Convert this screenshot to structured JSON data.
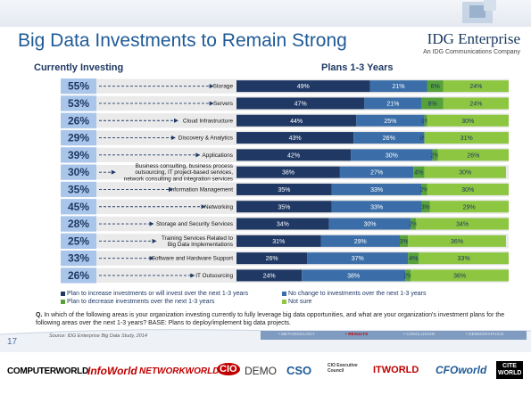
{
  "header": {
    "title": "Big Data Investments to Remain Strong",
    "brand_name": "IDG Enterprise",
    "brand_tagline": "An IDG Communications Company"
  },
  "columns": {
    "left_heading": "Currently Investing",
    "right_heading": "Plans 1-3 Years"
  },
  "chart_data": {
    "type": "bar",
    "stacked": "100%",
    "orientation": "horizontal",
    "categories": [
      "Storage",
      "Servers",
      "Cloud Infrastructure",
      "Discovery & Analytics",
      "Applications",
      "Business consulting, business process outsourcing, IT project-based services, network consulting and integration services",
      "Information Management",
      "Networking",
      "Storage and Security Services",
      "Training Services Related to Big Data Implementations",
      "Software and Hardware Support",
      "IT Outsourcing"
    ],
    "category_lines": [
      [
        "Storage"
      ],
      [
        "Servers"
      ],
      [
        "Cloud Infrastructure"
      ],
      [
        "Discovery & Analytics"
      ],
      [
        "Applications"
      ],
      [
        "Business consulting, business process",
        "outsourcing, IT project-based services,",
        "network consulting and integration services"
      ],
      [
        "Information Management"
      ],
      [
        "Networking"
      ],
      [
        "Storage and Security Services"
      ],
      [
        "Training Services Related to",
        "Big Data Implementations"
      ],
      [
        "Software and Hardware Support"
      ],
      [
        "IT Outsourcing"
      ]
    ],
    "currently_investing": [
      "55%",
      "53%",
      "26%",
      "29%",
      "39%",
      "30%",
      "35%",
      "45%",
      "28%",
      "25%",
      "33%",
      "26%"
    ],
    "series": [
      {
        "name": "Plan to increase investments or will invest over the next 1-3 years",
        "color": "#1f3864",
        "label_color": "#ffffff",
        "values": [
          49,
          47,
          44,
          43,
          42,
          38,
          35,
          35,
          34,
          31,
          26,
          24
        ]
      },
      {
        "name": "No change to investments over the next 1-3 years",
        "color": "#3b6ea8",
        "label_color": "#ffffff",
        "values": [
          21,
          21,
          25,
          26,
          30,
          27,
          33,
          33,
          30,
          29,
          37,
          38
        ]
      },
      {
        "name": "Plan to decrease investments over the next 1-3 years",
        "color": "#56a13a",
        "label_color": "#1f3864",
        "values": [
          6,
          8,
          1,
          0,
          2,
          4,
          2,
          3,
          2,
          3,
          4,
          2
        ]
      },
      {
        "name": "Not sure",
        "color": "#8dc641",
        "label_color": "#1f3864",
        "values": [
          24,
          24,
          30,
          31,
          26,
          30,
          30,
          29,
          34,
          36,
          33,
          36
        ]
      }
    ]
  },
  "legend": [
    {
      "label": "Plan to increase investments or will invest over the next 1-3 years",
      "color": "#1f3864"
    },
    {
      "label": "No change to investments over the next 1-3 years",
      "color": "#3b6ea8"
    },
    {
      "label": "Plan to decrease investments over the next 1-3 years",
      "color": "#56a13a"
    },
    {
      "label": "Not sure",
      "color": "#8dc641"
    }
  ],
  "question": {
    "prefix": "Q.",
    "text": "In which of the following areas is your organization investing currently to fully leverage big data opportunities, and what are your organization's investment plans for the following areas over the next 1-3 years? BASE: Plans to deploy/implement big data projects."
  },
  "footer": {
    "page_number": "17",
    "source": "Source: IDG Enterprise Big Data Study, 2014",
    "nav": [
      "• METHODOLOGY",
      "• RESULTS",
      "• CONCLUSION",
      "• DEMOGRAPHICS"
    ],
    "active_nav": "• RESULTS"
  },
  "brands": [
    {
      "name": "COMPUTERWORLD",
      "color": "#000000"
    },
    {
      "name": "InfoWorld",
      "color": "#c00000"
    },
    {
      "name": "NETWORKWORLD",
      "color": "#c00000"
    },
    {
      "name": "CIO",
      "color": "#c00000"
    },
    {
      "name": "DEMO",
      "color": "#333333"
    },
    {
      "name": "CSO",
      "color": "#1f5a96"
    },
    {
      "name": "CIO Executive Council",
      "color": "#333333"
    },
    {
      "name": "ITWORLD",
      "color": "#c00000"
    },
    {
      "name": "CFOworld",
      "color": "#1f5a96"
    },
    {
      "name": "CITE WORLD",
      "color": "#000000"
    }
  ],
  "colors": {
    "title": "#1f5a96",
    "percent_cell": "#a9c6ea",
    "row_band": "#d9d9d9",
    "arrow": "#1f3864",
    "nav_bar": "#7f9bc0",
    "nav_active": "#c00000"
  }
}
